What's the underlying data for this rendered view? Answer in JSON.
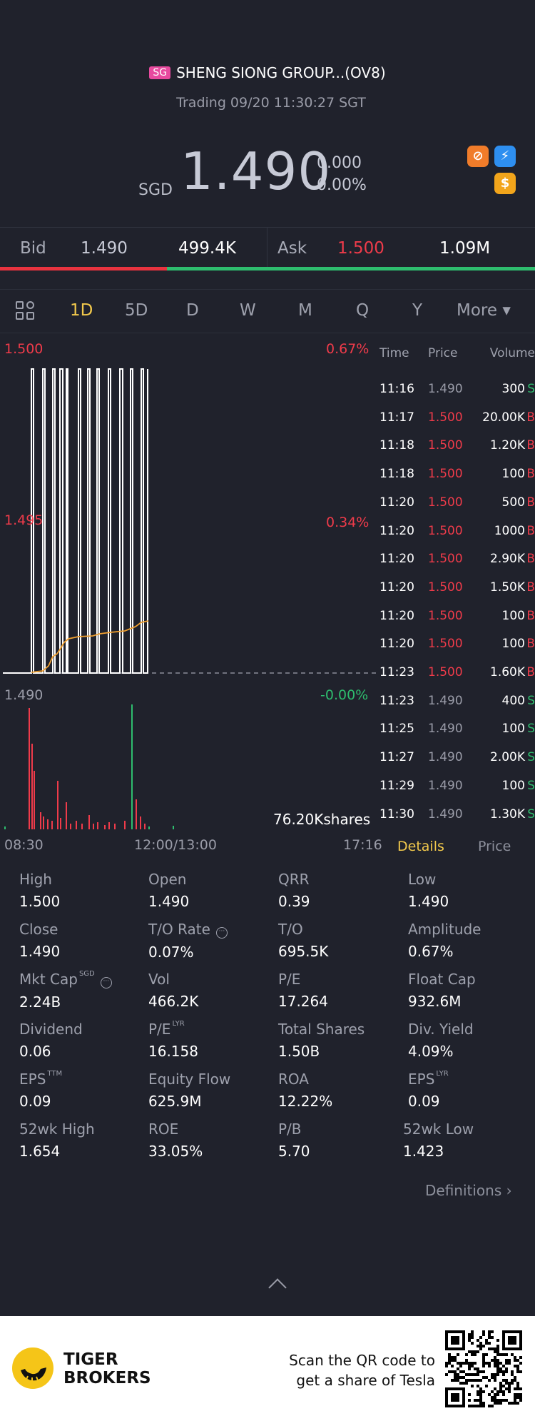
{
  "header": {
    "market": "SG",
    "name": "SHENG SIONG GROUP...(OV8)",
    "status": "Trading 09/20 11:30:27 SGT",
    "currency": "SGD",
    "price": "1.490",
    "change": "0.000",
    "change_pct": "0.00%"
  },
  "bidask": {
    "bid_label": "Bid",
    "bid_price": "1.490",
    "bid_size": "499.4K",
    "ask_label": "Ask",
    "ask_price": "1.500",
    "ask_size": "1.09M",
    "bid_share": 0.312
  },
  "tabs": [
    "1D",
    "5D",
    "D",
    "W",
    "M",
    "Q",
    "Y",
    "More ▾"
  ],
  "active_tab": "1D",
  "chart_data": {
    "type": "line",
    "y_labels_left": [
      "1.500",
      "1.495",
      "1.490"
    ],
    "y_labels_right": [
      "0.67%",
      "0.34%",
      "-0.00%"
    ],
    "x_labels": [
      "08:30",
      "12:00/13:00",
      "17:16"
    ],
    "ylim": [
      1.49,
      1.5
    ],
    "volume_total": "76.20Kshares",
    "colors": {
      "price": "#ffffff",
      "avg": "#f0a030",
      "up": "#ef3b4a",
      "down": "#2ebd6e"
    }
  },
  "time_sales": {
    "headers": [
      "Time",
      "Price",
      "Volume"
    ],
    "rows": [
      {
        "time": "11:16",
        "price": "1.490",
        "vol": "300",
        "side": "S"
      },
      {
        "time": "11:17",
        "price": "1.500",
        "vol": "20.00K",
        "side": "B"
      },
      {
        "time": "11:18",
        "price": "1.500",
        "vol": "1.20K",
        "side": "B"
      },
      {
        "time": "11:18",
        "price": "1.500",
        "vol": "100",
        "side": "B"
      },
      {
        "time": "11:20",
        "price": "1.500",
        "vol": "500",
        "side": "B"
      },
      {
        "time": "11:20",
        "price": "1.500",
        "vol": "1000",
        "side": "B"
      },
      {
        "time": "11:20",
        "price": "1.500",
        "vol": "2.90K",
        "side": "B"
      },
      {
        "time": "11:20",
        "price": "1.500",
        "vol": "1.50K",
        "side": "B"
      },
      {
        "time": "11:20",
        "price": "1.500",
        "vol": "100",
        "side": "B"
      },
      {
        "time": "11:20",
        "price": "1.500",
        "vol": "100",
        "side": "B"
      },
      {
        "time": "11:23",
        "price": "1.500",
        "vol": "1.60K",
        "side": "B"
      },
      {
        "time": "11:23",
        "price": "1.490",
        "vol": "400",
        "side": "S"
      },
      {
        "time": "11:25",
        "price": "1.490",
        "vol": "100",
        "side": "S"
      },
      {
        "time": "11:27",
        "price": "1.490",
        "vol": "2.00K",
        "side": "S"
      },
      {
        "time": "11:29",
        "price": "1.490",
        "vol": "100",
        "side": "S"
      },
      {
        "time": "11:30",
        "price": "1.490",
        "vol": "1.30K",
        "side": "S"
      }
    ],
    "tab_details": "Details",
    "tab_price": "Price"
  },
  "stats": [
    {
      "k": "High",
      "v": "1.500"
    },
    {
      "k": "Open",
      "v": "1.490"
    },
    {
      "k": "QRR",
      "v": "0.39"
    },
    {
      "k": "Low",
      "v": "1.490"
    },
    {
      "k": "Close",
      "v": "1.490"
    },
    {
      "k": "T/O Rate",
      "v": "0.07%"
    },
    {
      "k": "T/O",
      "v": "695.5K"
    },
    {
      "k": "Amplitude",
      "v": "0.67%"
    },
    {
      "k": "Mkt Cap",
      "v": "2.24B"
    },
    {
      "k": "Vol",
      "v": "466.2K"
    },
    {
      "k": "P/E",
      "v": "17.264"
    },
    {
      "k": "Float Cap",
      "v": "932.6M"
    },
    {
      "k": "Dividend",
      "v": "0.06"
    },
    {
      "k": "P/E",
      "v": "16.158"
    },
    {
      "k": "Total Shares",
      "v": "1.50B"
    },
    {
      "k": "Div. Yield",
      "v": "4.09%"
    },
    {
      "k": "EPS",
      "v": "0.09"
    },
    {
      "k": "Equity Flow",
      "v": "625.9M"
    },
    {
      "k": "ROA",
      "v": "12.22%"
    },
    {
      "k": "EPS",
      "v": "0.09"
    },
    {
      "k": "52wk High",
      "v": "1.654"
    },
    {
      "k": "ROE",
      "v": "33.05%"
    },
    {
      "k": "P/B",
      "v": "5.70"
    },
    {
      "k": "52wk Low",
      "v": "1.423"
    }
  ],
  "sups": {
    "mktcap": "SGD",
    "pe_lyr": "LYR",
    "eps_ttm": "TTM",
    "eps_lyr": "LYR"
  },
  "definitions": "Definitions",
  "footer": {
    "brand1": "TIGER",
    "brand2": "BROKERS",
    "qr_line1": "Scan the QR code to",
    "qr_line2": "get a share of Tesla"
  }
}
